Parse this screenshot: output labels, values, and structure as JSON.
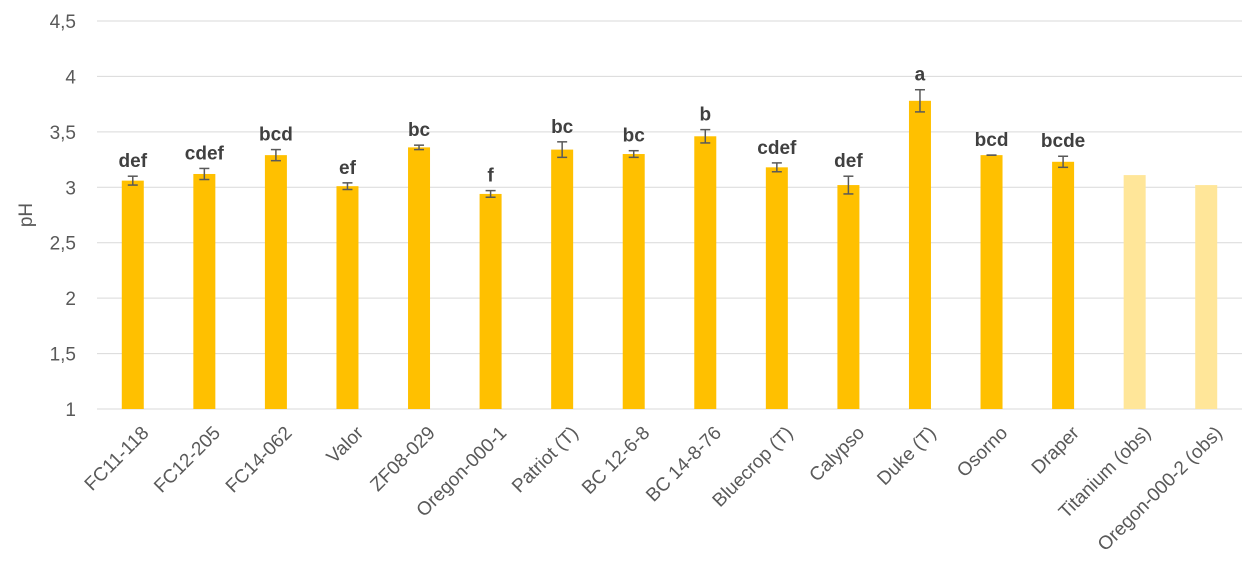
{
  "chart_data": {
    "type": "bar",
    "ylabel": "pH",
    "xlabel": "",
    "ylim": [
      1,
      4.5
    ],
    "ytick_step": 0.5,
    "grid": true,
    "decimal_separator": ",",
    "colors": {
      "bar": "#FFC000",
      "bar_obs": "#FFE699",
      "gridline": "#d9d9d9",
      "error_bar": "#595959"
    },
    "categories": [
      "FC11-118",
      "FC12-205",
      "FC14-062",
      "Valor",
      "ZF08-029",
      "Oregon-000-1",
      "Patriot (T)",
      "BC 12-6-8",
      "BC 14-8-76",
      "Bluecrop (T)",
      "Calypso",
      "Duke (T)",
      "Osorno",
      "Draper",
      "Titanium (obs)",
      "Oregon-000-2 (obs)"
    ],
    "values": [
      3.06,
      3.12,
      3.29,
      3.01,
      3.36,
      2.94,
      3.34,
      3.3,
      3.46,
      3.18,
      3.02,
      3.78,
      3.29,
      3.23,
      3.11,
      3.02
    ],
    "errors": [
      0.04,
      0.05,
      0.05,
      0.03,
      0.02,
      0.03,
      0.07,
      0.03,
      0.06,
      0.04,
      0.08,
      0.1,
      0.0,
      0.05,
      null,
      null
    ],
    "significance_labels": [
      "def",
      "cdef",
      "bcd",
      "ef",
      "bc",
      "f",
      "bc",
      "bc",
      "b",
      "cdef",
      "def",
      "a",
      "bcd",
      "bcde",
      "",
      ""
    ],
    "observed_only": [
      false,
      false,
      false,
      false,
      false,
      false,
      false,
      false,
      false,
      false,
      false,
      false,
      false,
      false,
      true,
      true
    ]
  }
}
